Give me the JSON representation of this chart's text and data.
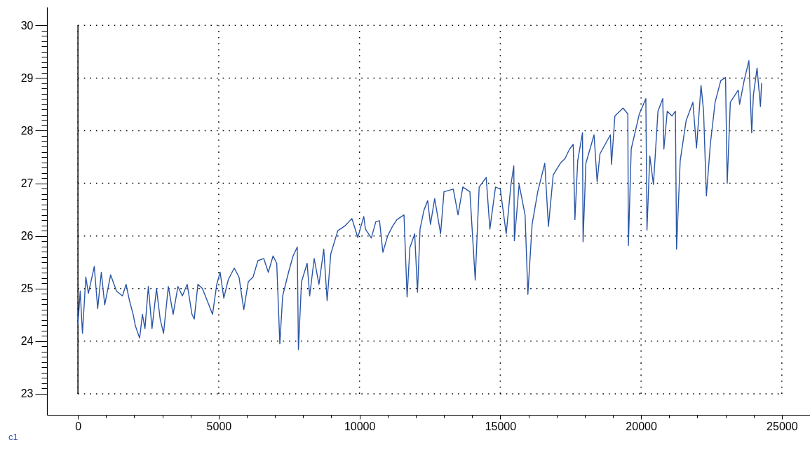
{
  "chart_data": {
    "type": "line",
    "x": [
      0,
      80,
      160,
      280,
      370,
      580,
      700,
      830,
      950,
      1160,
      1370,
      1580,
      1710,
      1830,
      1960,
      2040,
      2190,
      2290,
      2380,
      2500,
      2630,
      2790,
      2920,
      3040,
      3210,
      3380,
      3550,
      3710,
      3880,
      4050,
      4130,
      4260,
      4420,
      4590,
      4780,
      4930,
      5050,
      5180,
      5340,
      5550,
      5720,
      5890,
      6050,
      6220,
      6390,
      6600,
      6760,
      6930,
      7060,
      7170,
      7270,
      7480,
      7640,
      7790,
      7830,
      7940,
      8140,
      8230,
      8390,
      8560,
      8730,
      8850,
      8980,
      9230,
      9480,
      9730,
      9940,
      10150,
      10210,
      10420,
      10580,
      10710,
      10830,
      11000,
      11170,
      11330,
      11580,
      11690,
      11790,
      11960,
      12060,
      12150,
      12290,
      12420,
      12520,
      12670,
      12880,
      13000,
      13330,
      13500,
      13670,
      13920,
      14110,
      14250,
      14500,
      14630,
      14830,
      15000,
      15210,
      15380,
      15480,
      15500,
      15670,
      15880,
      15980,
      16130,
      16330,
      16580,
      16710,
      16880,
      17130,
      17300,
      17460,
      17590,
      17650,
      17750,
      17920,
      17940,
      18040,
      18330,
      18440,
      18540,
      18910,
      18950,
      19070,
      19360,
      19530,
      19550,
      19650,
      19940,
      20170,
      20210,
      20310,
      20440,
      20600,
      20770,
      20810,
      20930,
      21100,
      21220,
      21260,
      21390,
      21600,
      21840,
      21970,
      22130,
      22220,
      22320,
      22460,
      22630,
      22830,
      23000,
      23060,
      23170,
      23450,
      23500,
      23660,
      23830,
      23930,
      23990,
      24120,
      24240,
      24280
    ],
    "series": [
      {
        "name": "c1",
        "color": "#2a55a5",
        "values": [
          24.33,
          24.95,
          24.15,
          25.22,
          24.91,
          25.42,
          24.62,
          25.31,
          24.69,
          25.26,
          24.95,
          24.86,
          25.08,
          24.77,
          24.51,
          24.29,
          24.06,
          24.51,
          24.24,
          25.04,
          24.24,
          25.0,
          24.42,
          24.15,
          25.04,
          24.51,
          25.04,
          24.86,
          25.08,
          24.51,
          24.42,
          25.08,
          25.0,
          24.77,
          24.51,
          25.08,
          25.31,
          24.82,
          25.17,
          25.39,
          25.22,
          24.6,
          25.13,
          25.22,
          25.53,
          25.57,
          25.31,
          25.62,
          25.48,
          23.95,
          24.86,
          25.31,
          25.62,
          25.79,
          23.84,
          25.13,
          25.48,
          24.86,
          25.57,
          25.08,
          25.75,
          24.77,
          25.66,
          26.1,
          26.19,
          26.33,
          25.97,
          26.37,
          26.13,
          25.96,
          26.27,
          26.29,
          25.69,
          26.0,
          26.18,
          26.31,
          26.4,
          24.84,
          25.78,
          26.04,
          24.93,
          26.13,
          26.49,
          26.67,
          26.22,
          26.71,
          26.04,
          26.84,
          26.89,
          26.4,
          26.93,
          26.84,
          25.16,
          26.93,
          27.11,
          26.13,
          26.93,
          26.89,
          26.04,
          26.98,
          27.33,
          25.91,
          26.98,
          26.4,
          24.89,
          26.22,
          26.84,
          27.38,
          26.18,
          27.16,
          27.38,
          27.47,
          27.65,
          27.74,
          26.31,
          27.43,
          27.96,
          25.89,
          27.38,
          27.92,
          27.03,
          27.56,
          27.92,
          27.36,
          28.28,
          28.43,
          28.32,
          25.82,
          27.65,
          28.32,
          28.61,
          26.11,
          27.52,
          26.98,
          28.37,
          28.61,
          27.65,
          28.37,
          28.28,
          28.37,
          25.75,
          27.43,
          28.19,
          28.54,
          27.67,
          28.86,
          28.37,
          26.76,
          27.74,
          28.54,
          28.95,
          29.01,
          27.0,
          28.54,
          28.77,
          28.5,
          28.95,
          29.33,
          27.96,
          28.68,
          29.19,
          28.46,
          28.9
        ]
      }
    ],
    "xlim": [
      -1100,
      26000
    ],
    "ylim": [
      22.6,
      30.35
    ],
    "xticks": [
      0,
      {
        "value": 1000,
        "label": null
      },
      {
        "value": 2000,
        "label": null
      },
      {
        "value": 3000,
        "label": null
      },
      {
        "value": 4000,
        "label": null
      },
      5000,
      {
        "value": 6000,
        "label": null
      },
      {
        "value": 7000,
        "label": null
      },
      {
        "value": 8000,
        "label": null
      },
      {
        "value": 9000,
        "label": null
      },
      10000,
      {
        "value": 11000,
        "label": null
      },
      {
        "value": 12000,
        "label": null
      },
      {
        "value": 13000,
        "label": null
      },
      {
        "value": 14000,
        "label": null
      },
      15000,
      {
        "value": 16000,
        "label": null
      },
      {
        "value": 17000,
        "label": null
      },
      {
        "value": 18000,
        "label": null
      },
      {
        "value": 19000,
        "label": null
      },
      20000,
      {
        "value": 21000,
        "label": null
      },
      {
        "value": 22000,
        "label": null
      },
      {
        "value": 23000,
        "label": null
      },
      {
        "value": 24000,
        "label": null
      },
      25000
    ],
    "yticks": [
      23,
      {
        "value": 23.1,
        "label": null
      },
      {
        "value": 23.2,
        "label": null
      },
      {
        "value": 23.3,
        "label": null
      },
      {
        "value": 23.4,
        "label": null
      },
      {
        "value": 23.5,
        "label": null
      },
      {
        "value": 23.6,
        "label": null
      },
      {
        "value": 23.7,
        "label": null
      },
      {
        "value": 23.8,
        "label": null
      },
      {
        "value": 23.9,
        "label": null
      },
      24,
      {
        "value": 24.1,
        "label": null
      },
      {
        "value": 24.2,
        "label": null
      },
      {
        "value": 24.3,
        "label": null
      },
      {
        "value": 24.4,
        "label": null
      },
      {
        "value": 24.5,
        "label": null
      },
      {
        "value": 24.6,
        "label": null
      },
      {
        "value": 24.7,
        "label": null
      },
      {
        "value": 24.8,
        "label": null
      },
      {
        "value": 24.9,
        "label": null
      },
      25,
      {
        "value": 25.1,
        "label": null
      },
      {
        "value": 25.2,
        "label": null
      },
      {
        "value": 25.3,
        "label": null
      },
      {
        "value": 25.4,
        "label": null
      },
      {
        "value": 25.5,
        "label": null
      },
      {
        "value": 25.6,
        "label": null
      },
      {
        "value": 25.7,
        "label": null
      },
      {
        "value": 25.8,
        "label": null
      },
      {
        "value": 25.9,
        "label": null
      },
      26,
      {
        "value": 26.1,
        "label": null
      },
      {
        "value": 26.2,
        "label": null
      },
      {
        "value": 26.3,
        "label": null
      },
      {
        "value": 26.4,
        "label": null
      },
      {
        "value": 26.5,
        "label": null
      },
      {
        "value": 26.6,
        "label": null
      },
      {
        "value": 26.7,
        "label": null
      },
      {
        "value": 26.8,
        "label": null
      },
      {
        "value": 26.9,
        "label": null
      },
      27,
      {
        "value": 27.1,
        "label": null
      },
      {
        "value": 27.2,
        "label": null
      },
      {
        "value": 27.3,
        "label": null
      },
      {
        "value": 27.4,
        "label": null
      },
      {
        "value": 27.5,
        "label": null
      },
      {
        "value": 27.6,
        "label": null
      },
      {
        "value": 27.7,
        "label": null
      },
      {
        "value": 27.8,
        "label": null
      },
      {
        "value": 27.9,
        "label": null
      },
      28,
      {
        "value": 28.1,
        "label": null
      },
      {
        "value": 28.2,
        "label": null
      },
      {
        "value": 28.3,
        "label": null
      },
      {
        "value": 28.4,
        "label": null
      },
      {
        "value": 28.5,
        "label": null
      },
      {
        "value": 28.6,
        "label": null
      },
      {
        "value": 28.7,
        "label": null
      },
      {
        "value": 28.8,
        "label": null
      },
      {
        "value": 28.9,
        "label": null
      },
      29,
      {
        "value": 29.1,
        "label": null
      },
      {
        "value": 29.2,
        "label": null
      },
      {
        "value": 29.3,
        "label": null
      },
      {
        "value": 29.4,
        "label": null
      },
      {
        "value": 29.5,
        "label": null
      },
      {
        "value": 29.6,
        "label": null
      },
      {
        "value": 29.7,
        "label": null
      },
      {
        "value": 29.8,
        "label": null
      },
      {
        "value": 29.9,
        "label": null
      },
      30
    ],
    "grid": true,
    "legend": "bottom left",
    "ref_lines": [
      {
        "axis": "x",
        "value": 0,
        "color": "#000000",
        "line_style": "solid"
      }
    ]
  }
}
